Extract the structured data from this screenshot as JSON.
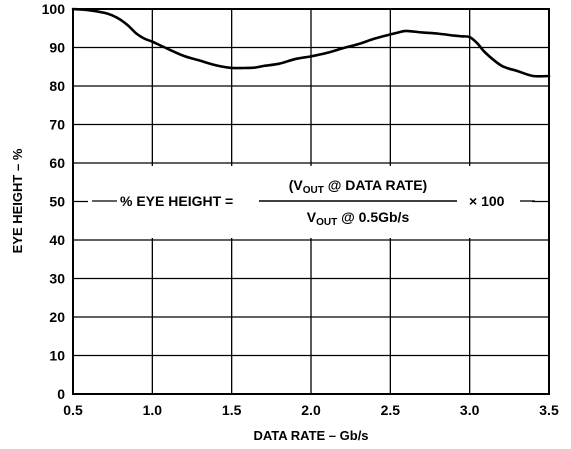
{
  "chart_data": {
    "type": "line",
    "title": "",
    "xlabel": "DATA RATE – Gb/s",
    "ylabel": "EYE HEIGHT – %",
    "xlim": [
      0.5,
      3.5
    ],
    "ylim": [
      0,
      100
    ],
    "x_ticks": [
      "0.5",
      "1.0",
      "1.5",
      "2.0",
      "2.5",
      "3.0",
      "3.5"
    ],
    "y_ticks": [
      "0",
      "10",
      "20",
      "30",
      "40",
      "50",
      "60",
      "70",
      "80",
      "90",
      "100"
    ],
    "grid": true,
    "series": [
      {
        "x": [
          0.5,
          0.6,
          0.7,
          0.75,
          0.8,
          0.85,
          0.9,
          0.95,
          1.0,
          1.1,
          1.2,
          1.3,
          1.4,
          1.5,
          1.6,
          1.65,
          1.7,
          1.8,
          1.9,
          2.0,
          2.1,
          2.2,
          2.3,
          2.4,
          2.5,
          2.55,
          2.6,
          2.7,
          2.8,
          2.9,
          2.95,
          3.0,
          3.05,
          3.1,
          3.2,
          3.3,
          3.4,
          3.5
        ],
        "y": [
          100,
          99.7,
          99.0,
          98.3,
          97.2,
          95.6,
          93.6,
          92.3,
          91.5,
          89.6,
          87.8,
          86.6,
          85.4,
          84.7,
          84.7,
          84.8,
          85.2,
          85.8,
          87.0,
          87.7,
          88.6,
          89.8,
          90.9,
          92.3,
          93.4,
          93.9,
          94.3,
          93.9,
          93.6,
          93.1,
          92.9,
          92.7,
          91.0,
          88.6,
          85.3,
          83.9,
          82.6,
          82.6
        ]
      }
    ],
    "annotation": {
      "prefix": "% EYE HEIGHT =",
      "numerator_open": "(V",
      "numerator_sub": "OUT",
      "numerator_rest": " @ DATA RATE)",
      "denominator_main": "V",
      "denominator_sub": "OUT",
      "denominator_rest": " @ 0.5Gb/s",
      "suffix": "× 100"
    }
  }
}
